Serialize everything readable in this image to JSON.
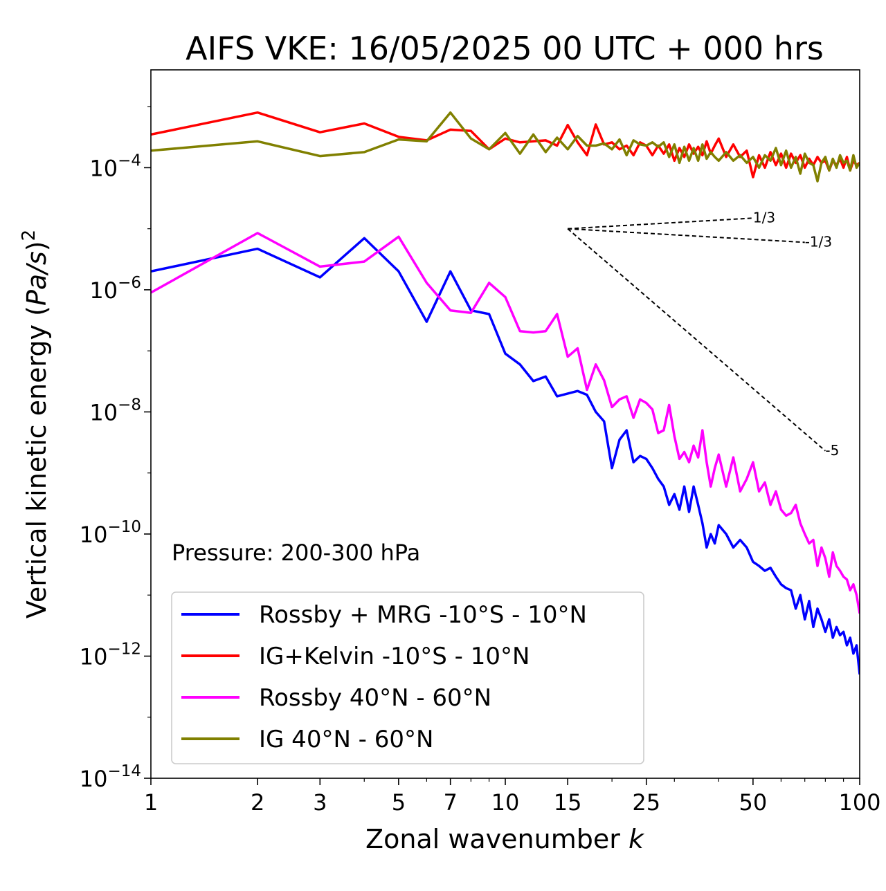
{
  "chart_data": {
    "type": "line",
    "title": "AIFS VKE: 16/05/2025 00 UTC + 000 hrs",
    "xlabel_prefix": "Zonal wavenumber ",
    "xlabel_var": "k",
    "ylabel_prefix": "Vertical kinetic energy (",
    "ylabel_var": "Pa/s",
    "ylabel_suffix": ")",
    "ylabel_exp": "2",
    "xscale": "log",
    "yscale": "log",
    "xlim": [
      1,
      100
    ],
    "ylim": [
      1e-14,
      0.004
    ],
    "grid": false,
    "legend_position": "lower-left",
    "x_ticks": [
      {
        "value": 1,
        "label": "1"
      },
      {
        "value": 2,
        "label": "2"
      },
      {
        "value": 3,
        "label": "3"
      },
      {
        "value": 5,
        "label": "5"
      },
      {
        "value": 7,
        "label": "7"
      },
      {
        "value": 10,
        "label": "10"
      },
      {
        "value": 15,
        "label": "15"
      },
      {
        "value": 25,
        "label": "25"
      },
      {
        "value": 50,
        "label": "50"
      },
      {
        "value": 100,
        "label": "100"
      }
    ],
    "y_ticks": [
      {
        "value": 0.0001,
        "base": "10",
        "exp": "−4"
      },
      {
        "value": 1e-06,
        "base": "10",
        "exp": "−6"
      },
      {
        "value": 1e-08,
        "base": "10",
        "exp": "−8"
      },
      {
        "value": 1e-10,
        "base": "10",
        "exp": "−10"
      },
      {
        "value": 1e-12,
        "base": "10",
        "exp": "−12"
      },
      {
        "value": 1e-14,
        "base": "10",
        "exp": "−14"
      }
    ],
    "annotation": "Pressure: 200-300 hPa",
    "reference_slopes": [
      {
        "label": "1/3",
        "slope": 0.333,
        "x0": 15,
        "x1": 50,
        "y0": 1e-05
      },
      {
        "label": "-1/3",
        "slope": -0.333,
        "x0": 15,
        "x1": 70,
        "y0": 1e-05
      },
      {
        "label": "-5",
        "slope": -5,
        "x0": 15,
        "x1": 80,
        "y0": 1e-05,
        "y1": 2.3e-09
      }
    ],
    "series": [
      {
        "name": "Rossby + MRG -10°S - 10°N",
        "color": "#0000ff",
        "x": [
          1,
          2,
          3,
          4,
          5,
          6,
          7,
          8,
          9,
          10,
          11,
          12,
          13,
          14,
          15,
          16,
          17,
          18,
          19,
          20,
          21,
          22,
          23,
          24,
          25,
          26,
          27,
          28,
          29,
          30,
          31,
          32,
          33,
          34,
          35,
          36,
          37,
          38,
          39,
          40,
          42,
          44,
          46,
          48,
          50,
          52,
          54,
          56,
          58,
          60,
          62,
          64,
          66,
          68,
          70,
          72,
          74,
          76,
          78,
          80,
          82,
          84,
          86,
          88,
          90,
          92,
          94,
          96,
          98,
          100
        ],
        "y": [
          2e-06,
          4.7e-06,
          1.6e-06,
          7e-06,
          2e-06,
          3e-07,
          2e-06,
          4.6e-07,
          4e-07,
          9e-08,
          6e-08,
          3.2e-08,
          3.8e-08,
          1.8e-08,
          2e-08,
          2.2e-08,
          1.9e-08,
          1e-08,
          7e-09,
          1.2e-09,
          3.5e-09,
          5e-09,
          1.5e-09,
          1.9e-09,
          1.7e-09,
          1.2e-09,
          8e-10,
          6e-10,
          3e-10,
          4.5e-10,
          2.5e-10,
          6e-10,
          2.3e-10,
          6e-10,
          3e-10,
          1.5e-10,
          6e-11,
          1e-10,
          7e-11,
          1.4e-10,
          1e-10,
          6e-11,
          8e-11,
          6e-11,
          3.5e-11,
          3e-11,
          2.5e-11,
          2.8e-11,
          2e-11,
          1.5e-11,
          1.3e-11,
          1.2e-11,
          6e-12,
          1e-11,
          4e-12,
          8e-12,
          3e-12,
          6e-12,
          4e-12,
          2.5e-12,
          4e-12,
          2e-12,
          3e-12,
          2.2e-12,
          2.5e-12,
          1.5e-12,
          2e-12,
          1.1e-12,
          1.5e-12,
          5e-13
        ]
      },
      {
        "name": "IG+Kelvin -10°S - 10°N",
        "color": "#ff0000",
        "x": [
          1,
          2,
          3,
          4,
          5,
          6,
          7,
          8,
          9,
          10,
          11,
          12,
          13,
          14,
          15,
          16,
          17,
          18,
          19,
          20,
          21,
          22,
          23,
          24,
          25,
          26,
          27,
          28,
          29,
          30,
          31,
          32,
          33,
          34,
          35,
          36,
          37,
          38,
          39,
          40,
          42,
          44,
          46,
          48,
          50,
          52,
          54,
          56,
          58,
          60,
          62,
          64,
          66,
          68,
          70,
          72,
          74,
          76,
          78,
          80,
          82,
          84,
          86,
          88,
          90,
          92,
          94,
          96,
          98,
          100
        ],
        "y": [
          0.00035,
          0.0008,
          0.00038,
          0.00053,
          0.00032,
          0.00028,
          0.00042,
          0.0004,
          0.0002,
          0.0003,
          0.00026,
          0.00027,
          0.00028,
          0.00023,
          0.0005,
          0.00026,
          0.00016,
          0.00051,
          0.00024,
          0.00026,
          0.0002,
          0.00023,
          0.00016,
          0.00026,
          0.00023,
          0.00016,
          0.00023,
          0.00017,
          0.00024,
          0.00013,
          0.00021,
          0.00015,
          0.00024,
          0.00017,
          0.00022,
          0.00016,
          0.00027,
          0.00017,
          0.00023,
          0.0003,
          0.00015,
          0.00024,
          0.00015,
          0.00019,
          7e-05,
          0.00016,
          0.0001,
          0.00018,
          0.00011,
          0.00017,
          0.0001,
          0.00017,
          0.00012,
          0.00016,
          0.0001,
          0.00014,
          0.00011,
          0.00015,
          0.00012,
          0.00013,
          9e-05,
          0.00013,
          0.00011,
          0.00014,
          0.0001,
          0.00015,
          9e-05,
          0.00013,
          0.00011,
          0.00012
        ]
      },
      {
        "name": "Rossby 40°N - 60°N",
        "color": "#ff00ff",
        "x": [
          1,
          2,
          3,
          4,
          5,
          6,
          7,
          8,
          9,
          10,
          11,
          12,
          13,
          14,
          15,
          16,
          17,
          18,
          19,
          20,
          21,
          22,
          23,
          24,
          25,
          26,
          27,
          28,
          29,
          30,
          31,
          32,
          33,
          34,
          35,
          36,
          37,
          38,
          39,
          40,
          42,
          44,
          46,
          48,
          50,
          52,
          54,
          56,
          58,
          60,
          62,
          64,
          66,
          68,
          70,
          72,
          74,
          76,
          78,
          80,
          82,
          84,
          86,
          88,
          90,
          92,
          94,
          96,
          98,
          100
        ],
        "y": [
          9e-07,
          8.5e-06,
          2.4e-06,
          2.9e-06,
          7.4e-06,
          1.3e-06,
          4.6e-07,
          4.2e-07,
          1.3e-06,
          7.6e-07,
          2.1e-07,
          2e-07,
          2.1e-07,
          4e-07,
          8e-08,
          1.1e-07,
          2.3e-08,
          6e-08,
          3.3e-08,
          1.2e-08,
          1.6e-08,
          1.8e-08,
          8e-09,
          1.6e-08,
          1.4e-08,
          1.1e-08,
          4.5e-09,
          5e-09,
          1.3e-08,
          4e-09,
          1.7e-09,
          2.2e-09,
          1.5e-09,
          2.8e-09,
          1.8e-09,
          5e-09,
          1.5e-09,
          6e-10,
          1.2e-09,
          2e-09,
          6e-10,
          1.8e-09,
          5e-10,
          8e-10,
          1.5e-09,
          5e-10,
          7e-10,
          3e-10,
          5e-10,
          2.5e-10,
          2e-10,
          2.2e-10,
          3e-10,
          1.5e-10,
          1e-10,
          7e-11,
          8e-11,
          3e-11,
          6e-11,
          4e-11,
          2e-11,
          5e-11,
          3e-11,
          2.5e-11,
          2e-11,
          1.8e-11,
          1.2e-11,
          1.5e-11,
          1e-11,
          5e-12
        ]
      },
      {
        "name": "IG 40°N - 60°N",
        "color": "#808000",
        "x": [
          1,
          2,
          3,
          4,
          5,
          6,
          7,
          8,
          9,
          10,
          11,
          12,
          13,
          14,
          15,
          16,
          17,
          18,
          19,
          20,
          21,
          22,
          23,
          24,
          25,
          26,
          27,
          28,
          29,
          30,
          31,
          32,
          33,
          34,
          35,
          36,
          37,
          38,
          39,
          40,
          42,
          44,
          46,
          48,
          50,
          52,
          54,
          56,
          58,
          60,
          62,
          64,
          66,
          68,
          70,
          72,
          74,
          76,
          78,
          80,
          82,
          84,
          86,
          88,
          90,
          92,
          94,
          96,
          98,
          100
        ],
        "y": [
          0.00019,
          0.00027,
          0.000155,
          0.00018,
          0.00029,
          0.00027,
          0.0008,
          0.0003,
          0.0002,
          0.00037,
          0.00017,
          0.00035,
          0.00018,
          0.00031,
          0.0002,
          0.00033,
          0.00023,
          0.00023,
          0.00025,
          0.0002,
          0.00029,
          0.00016,
          0.00028,
          0.00024,
          0.00023,
          0.00026,
          0.00022,
          0.00026,
          0.00015,
          0.00024,
          0.00012,
          0.00022,
          0.00013,
          0.00021,
          0.00013,
          0.00024,
          0.00014,
          0.00018,
          0.00015,
          0.00013,
          0.00018,
          0.00013,
          0.00016,
          0.00012,
          0.00015,
          0.0001,
          0.00016,
          0.00013,
          0.00021,
          0.00011,
          0.00019,
          0.0001,
          0.00015,
          8e-05,
          0.00017,
          0.00012,
          0.00011,
          6e-05,
          0.00012,
          0.00015,
          9e-05,
          0.00014,
          0.0001,
          0.00016,
          0.00012,
          0.00013,
          9e-05,
          0.00016,
          0.0001,
          0.00012
        ]
      }
    ]
  }
}
